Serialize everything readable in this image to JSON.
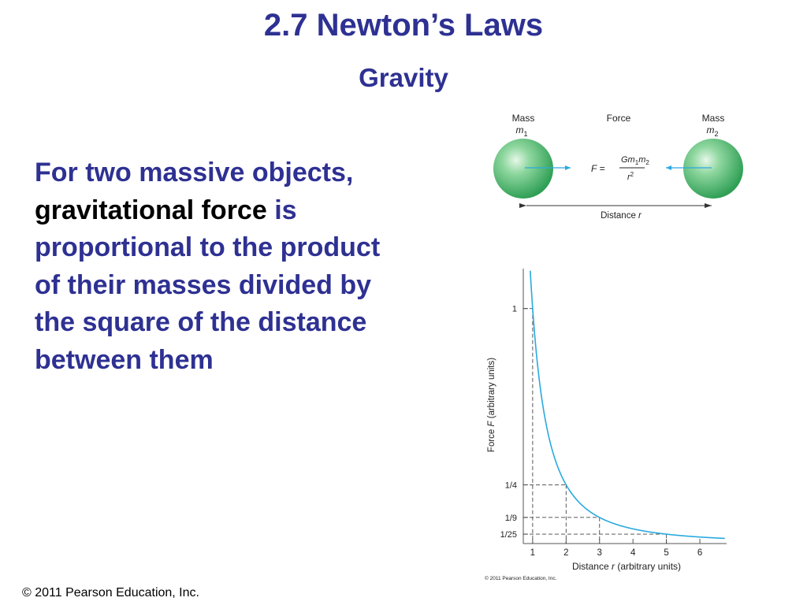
{
  "slide": {
    "title": "2.7 Newton’s Laws",
    "subtitle": "Gravity",
    "body": {
      "part1": "For two massive objects, ",
      "emph": "gravitational force",
      "part2": " is proportional to the product of their masses divided by the square of the distance between them"
    },
    "footer": "© 2011 Pearson Education, Inc."
  },
  "diagram": {
    "mass_label": "Mass",
    "m1_symbol": "m",
    "m1_sub": "1",
    "m2_symbol": "m",
    "m2_sub": "2",
    "force_label": "Force",
    "formula": {
      "lhs": "F =",
      "numerator_G": "Gm",
      "numerator_sub1": "1",
      "numerator_m": "m",
      "numerator_sub2": "2",
      "denominator": "r",
      "denominator_exp": "2"
    },
    "distance_label": "Distance ",
    "distance_symbol": "r",
    "colors": {
      "sphere": "#3bb26a",
      "arrow": "#29a9e0"
    }
  },
  "chart_data": {
    "type": "line",
    "ylabel_pre": "Force ",
    "ylabel_sym": "F",
    "ylabel_post": " (arbitrary units)",
    "xlabel_pre": "Distance ",
    "xlabel_sym": "r",
    "xlabel_post": " (arbitrary units)",
    "x_ticks": [
      "1",
      "2",
      "3",
      "4",
      "5",
      "6"
    ],
    "y_ticks": [
      {
        "label": "1",
        "value": 1
      },
      {
        "label": "1/4",
        "value": 0.25
      },
      {
        "label": "1/9",
        "value": 0.1111
      },
      {
        "label": "1/25",
        "value": 0.04
      }
    ],
    "dashed_guides": [
      1,
      2,
      3,
      5
    ],
    "function": "1/r^2",
    "xlim": [
      0.72,
      6.8
    ],
    "ylim": [
      0,
      1.17
    ],
    "grid": false,
    "line_color": "#29a9e0",
    "copyright": "© 2011 Pearson Education, Inc."
  }
}
